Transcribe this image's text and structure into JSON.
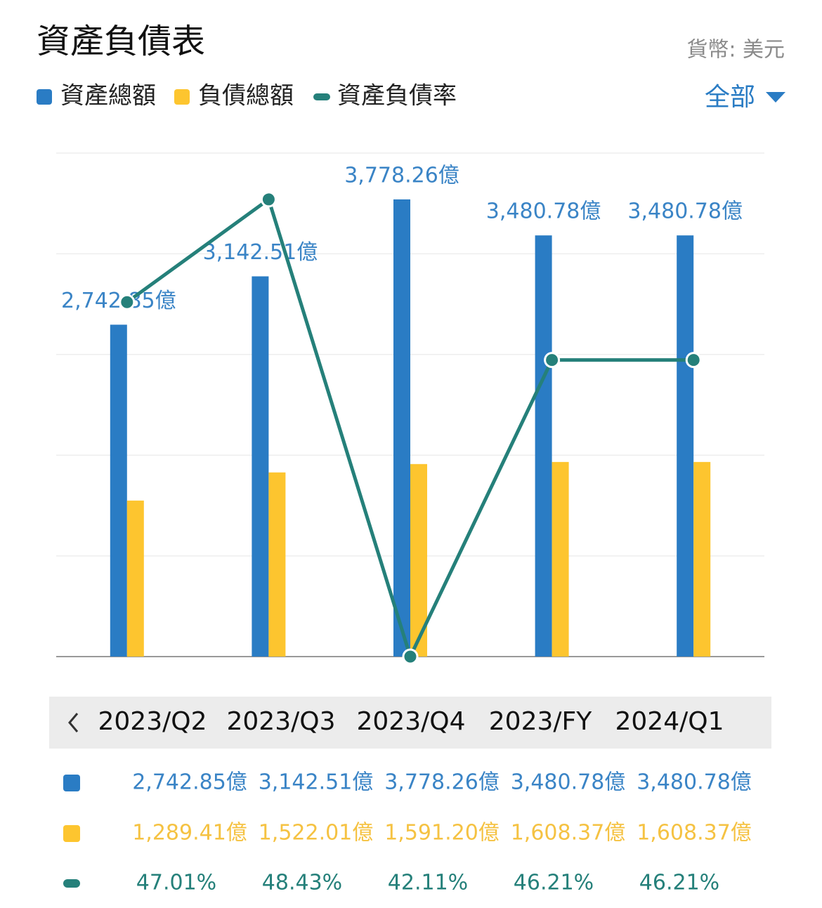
{
  "header": {
    "title": "資產負債表",
    "currency": "貨幣: 美元",
    "filter": "全部"
  },
  "chart_data": {
    "type": "bar",
    "categories": [
      "2023/Q2",
      "2023/Q3",
      "2023/Q4",
      "2023/FY",
      "2024/Q1"
    ],
    "series": [
      {
        "name": "資產總額",
        "type": "bar",
        "color": "#2a7cc4",
        "values": [
          2742.85,
          3142.51,
          3778.26,
          3480.78,
          3480.78
        ],
        "value_labels": [
          "2,742.85億",
          "3,142.51億",
          "3,778.26億",
          "3,480.78億",
          "3,480.78億"
        ]
      },
      {
        "name": "負債總額",
        "type": "bar",
        "color": "#fdc52f",
        "values": [
          1289.41,
          1522.01,
          1591.2,
          1608.37,
          1608.37
        ],
        "value_labels": [
          "1,289.41億",
          "1,522.01億",
          "1,591.20億",
          "1,608.37億",
          "1,608.37億"
        ]
      },
      {
        "name": "資產負債率",
        "type": "line",
        "axis": "y2",
        "color": "#25807a",
        "values": [
          47.01,
          48.43,
          42.11,
          46.21,
          46.21
        ],
        "value_labels": [
          "47.01%",
          "48.43%",
          "42.11%",
          "46.21%",
          "46.21%"
        ]
      }
    ],
    "ylim": [
      0,
      4161
    ],
    "y2lim": [
      42.11,
      49.07
    ],
    "grid": true
  }
}
